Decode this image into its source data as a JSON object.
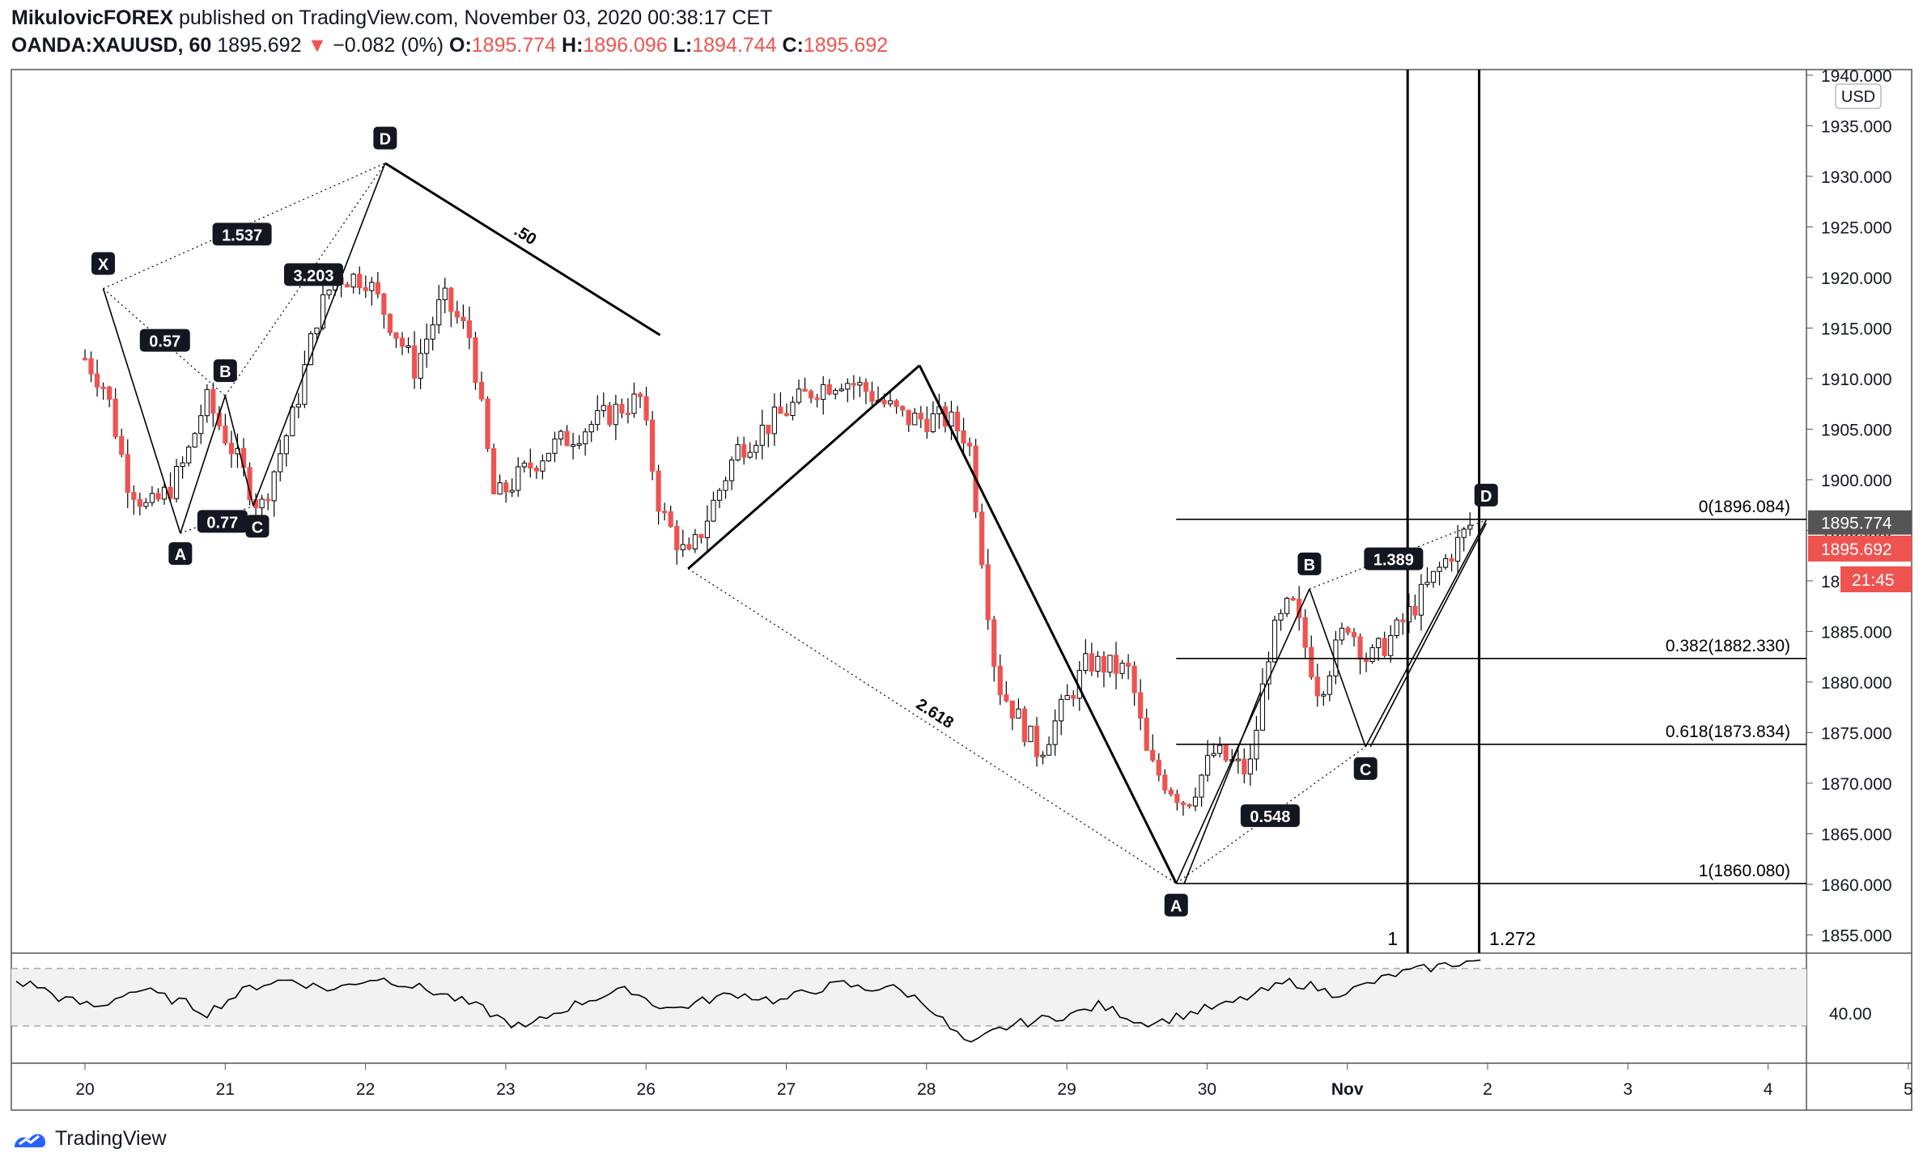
{
  "header": {
    "author": "MikulovicFOREX",
    "published": "published on TradingView.com, November 03, 2020 00:38:17 CET",
    "symbol": "OANDA:XAUUSD, 60",
    "last": "1895.692",
    "arrow": "▼",
    "change": "−0.082 (0%)",
    "o_label": "O:",
    "o": "1895.774",
    "h_label": "H:",
    "h": "1896.096",
    "l_label": "L:",
    "l": "1894.744",
    "c_label": "C:",
    "c": "1895.692"
  },
  "brand": "TradingView",
  "colors": {
    "up": "#26a69a",
    "down": "#ef5350",
    "candle_up_fill": "#ffffff",
    "line": "#000000",
    "label_bg": "#131722",
    "price_tag": "#ef5350"
  },
  "chart_data": {
    "type": "candlestick",
    "currency": "USD",
    "ylim": [
      1852,
      1941
    ],
    "y_ticks": [
      "1855.000",
      "1860.000",
      "1865.000",
      "1870.000",
      "1875.000",
      "1880.000",
      "1885.000",
      "1890.000",
      "1895.000",
      "1900.000",
      "1905.000",
      "1910.000",
      "1915.000",
      "1920.000",
      "1925.000",
      "1930.000",
      "1935.000",
      "1940.000"
    ],
    "x_ticks": [
      "20",
      "21",
      "22",
      "23",
      "26",
      "27",
      "28",
      "29",
      "30",
      "Nov",
      "2",
      "3",
      "4",
      "5"
    ],
    "close_path": [
      [
        0,
        1912
      ],
      [
        0.15,
        1909
      ],
      [
        0.3,
        1900
      ],
      [
        0.45,
        1897
      ],
      [
        0.6,
        1899
      ],
      [
        0.72,
        1902
      ],
      [
        0.86,
        1908
      ],
      [
        1.05,
        1903
      ],
      [
        1.25,
        1897
      ],
      [
        1.5,
        1907
      ],
      [
        1.65,
        1916
      ],
      [
        1.78,
        1920
      ],
      [
        2.0,
        1920
      ],
      [
        2.2,
        1915
      ],
      [
        2.35,
        1911
      ],
      [
        2.55,
        1918
      ],
      [
        2.75,
        1914
      ],
      [
        2.92,
        1898
      ],
      [
        3.3,
        1903
      ],
      [
        3.8,
        1907
      ],
      [
        3.96,
        1908
      ],
      [
        4.1,
        1897
      ],
      [
        4.3,
        1892
      ],
      [
        4.65,
        1903
      ],
      [
        5.2,
        1909
      ],
      [
        5.4,
        1910
      ],
      [
        5.55,
        1909
      ],
      [
        5.85,
        1906
      ],
      [
        6.15,
        1906
      ],
      [
        6.3,
        1904
      ],
      [
        6.5,
        1880
      ],
      [
        6.8,
        1873
      ],
      [
        7.15,
        1882
      ],
      [
        7.45,
        1881
      ],
      [
        7.58,
        1872
      ],
      [
        7.85,
        1868
      ],
      [
        8.05,
        1873
      ],
      [
        8.3,
        1871
      ],
      [
        8.45,
        1884
      ],
      [
        8.6,
        1888
      ],
      [
        8.8,
        1879
      ],
      [
        9.0,
        1886
      ],
      [
        9.15,
        1882
      ],
      [
        9.35,
        1885
      ],
      [
        9.65,
        1891
      ],
      [
        9.9,
        1896
      ]
    ],
    "last_price": "1895.774",
    "current_price": "1895.692",
    "countdown": "21:45",
    "fib_levels": [
      {
        "label": "0(1896.084)",
        "value": 1896.084
      },
      {
        "label": "0.382(1882.330)",
        "value": 1882.33
      },
      {
        "label": "0.618(1873.834)",
        "value": 1873.834
      },
      {
        "label": "1(1860.080)",
        "value": 1860.08
      }
    ],
    "time_fib": {
      "labels": [
        "1",
        "1.272"
      ],
      "x": [
        9.43,
        9.94
      ]
    },
    "pattern1": [
      {
        "label": "X",
        "x": 0.13,
        "y": 1918.9
      },
      {
        "label": "A",
        "x": 0.68,
        "y": 1894.7
      },
      {
        "label": "B",
        "x": 1.0,
        "y": 1908.3
      },
      {
        "label": "C",
        "x": 1.2,
        "y": 1897.4
      },
      {
        "label": "D",
        "x": 2.14,
        "y": 1931.3
      }
    ],
    "pattern1_ratios": [
      {
        "label": "1.537",
        "x": 1.12,
        "y": 1924.2
      },
      {
        "label": "0.57",
        "x": 0.57,
        "y": 1913.7
      },
      {
        "label": "3.203",
        "x": 1.63,
        "y": 1920.2
      },
      {
        "label": "0.77",
        "x": 0.98,
        "y": 1895.8
      }
    ],
    "wave_lines": [
      {
        "from": [
          2.14,
          1931.3
        ],
        "to": [
          4.1,
          1914.3
        ],
        "label": ".50"
      },
      {
        "from": [
          4.3,
          1891.2
        ],
        "to": [
          5.95,
          1911.3
        ]
      },
      {
        "from": [
          5.95,
          1911.3
        ],
        "to": [
          7.78,
          1860.1
        ]
      }
    ],
    "dotted_2618": {
      "from": [
        4.3,
        1891.2
      ],
      "to": [
        7.78,
        1860.1
      ],
      "label": "2.618"
    },
    "pattern2": [
      {
        "label": "A",
        "x": 7.78,
        "y": 1860.1
      },
      {
        "label": "B",
        "x": 8.73,
        "y": 1889.2
      },
      {
        "label": "C",
        "x": 9.13,
        "y": 1873.6
      },
      {
        "label": "D",
        "x": 9.99,
        "y": 1896.0
      }
    ],
    "pattern2_ratios": [
      {
        "label": "1.389",
        "x": 9.33,
        "y": 1892.1
      },
      {
        "label": "0.548",
        "x": 8.45,
        "y": 1866.7
      }
    ],
    "rsi": {
      "level": "40.00",
      "values": [
        66,
        64,
        58,
        55,
        53,
        60,
        62,
        58,
        55,
        50,
        57,
        63,
        66,
        67,
        64,
        62,
        66,
        68,
        66,
        63,
        60,
        56,
        52,
        46,
        42,
        48,
        53,
        57,
        60,
        62,
        55,
        52,
        55,
        58,
        60,
        58,
        56,
        60,
        63,
        65,
        62,
        64,
        60,
        54,
        42,
        33,
        40,
        44,
        46,
        48,
        50,
        54,
        50,
        45,
        46,
        49,
        52,
        54,
        58,
        62,
        66,
        64,
        60,
        62,
        66,
        70,
        72,
        74,
        76,
        77
      ]
    }
  }
}
